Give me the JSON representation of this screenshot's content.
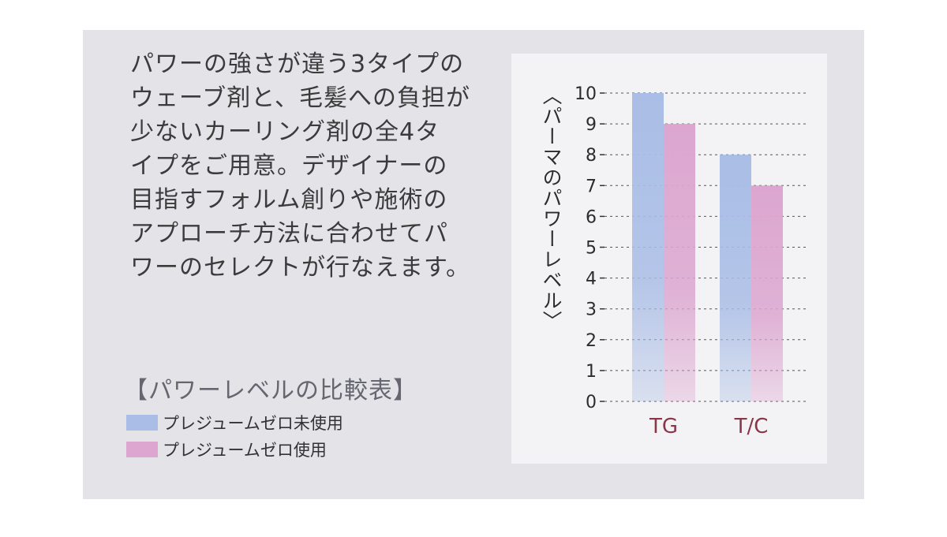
{
  "description_lines": [
    "パワーの強さが違う3タイプの",
    "ウェーブ剤と、毛髪への負担が",
    "少ないカーリング剤の全4タ",
    "イプをご用意。デザイナーの",
    "目指すフォルム創りや施術の",
    "アプローチ方法に合わせてパ",
    "ワーのセレクトが行なえます。"
  ],
  "legend": {
    "title": "【パワーレベルの比較表】"
  },
  "chart_data": {
    "type": "bar",
    "title": "",
    "xlabel": "",
    "ylabel": "〈パーマのパワーレベル〉",
    "categories": [
      "TG",
      "T/C"
    ],
    "series": [
      {
        "name": "プレジュームゼロ未使用",
        "values": [
          10,
          8
        ],
        "color": "#a9bde6"
      },
      {
        "name": "プレジュームゼロ使用",
        "values": [
          9,
          7
        ],
        "color": "#dca6d0"
      }
    ],
    "ylim": [
      0,
      10
    ],
    "yticks": [
      0,
      1,
      2,
      3,
      4,
      5,
      6,
      7,
      8,
      9,
      10
    ],
    "grid": "dashed horizontal",
    "category_label_color": "#8a3548"
  }
}
